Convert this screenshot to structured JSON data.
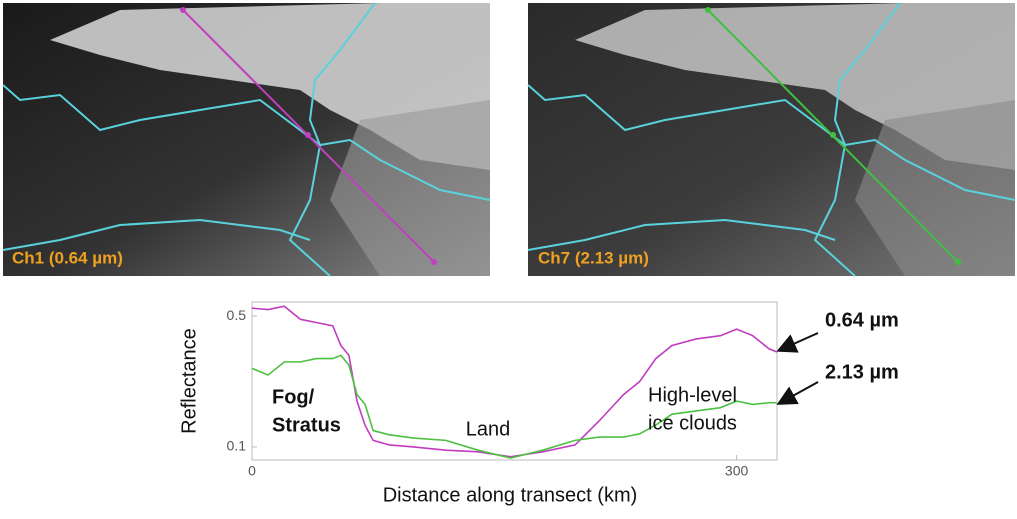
{
  "images": [
    {
      "label": "Ch1 (0.64 µm)"
    },
    {
      "label": "Ch7 (2.13 µm)"
    }
  ],
  "chart_data": {
    "type": "line",
    "x_label": "Distance along transect (km)",
    "y_label": "Reflectance",
    "x": [
      0,
      10,
      20,
      30,
      40,
      50,
      55,
      60,
      65,
      70,
      75,
      85,
      100,
      120,
      140,
      160,
      180,
      200,
      215,
      230,
      240,
      250,
      260,
      275,
      290,
      300,
      310,
      320,
      325
    ],
    "series": [
      {
        "name": "0.64 µm",
        "color": "#c03cc0",
        "values": [
          0.524,
          0.52,
          0.53,
          0.49,
          0.48,
          0.47,
          0.41,
          0.38,
          0.24,
          0.166,
          0.12,
          0.106,
          0.1,
          0.09,
          0.085,
          0.07,
          0.085,
          0.106,
          0.18,
          0.26,
          0.3,
          0.37,
          0.41,
          0.43,
          0.44,
          0.46,
          0.44,
          0.4,
          0.39
        ]
      },
      {
        "name": "2.13 µm",
        "color": "#4cc040",
        "values": [
          0.34,
          0.32,
          0.36,
          0.36,
          0.37,
          0.37,
          0.38,
          0.35,
          0.26,
          0.23,
          0.15,
          0.137,
          0.127,
          0.12,
          0.09,
          0.066,
          0.09,
          0.12,
          0.13,
          0.13,
          0.14,
          0.167,
          0.2,
          0.21,
          0.22,
          0.24,
          0.23,
          0.235,
          0.235
        ]
      }
    ],
    "xlim": [
      0,
      325
    ],
    "xticks": [
      0,
      300
    ],
    "ylim": [
      0.06,
      0.543
    ],
    "yticks": [
      0.1,
      0.5
    ],
    "annotations": [
      {
        "lines": [
          "Fog/",
          "Stratus"
        ]
      },
      {
        "lines": [
          "Land"
        ]
      },
      {
        "lines": [
          "High-level",
          "ice clouds"
        ]
      }
    ]
  }
}
